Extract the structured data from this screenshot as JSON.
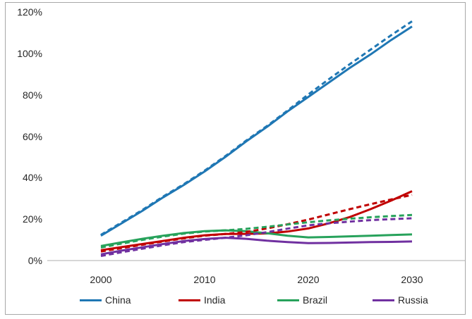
{
  "figure": {
    "background_color": "#ffffff",
    "border_color": "#a8a8a8"
  },
  "chart_data": {
    "type": "line",
    "title": "",
    "xlabel": "",
    "ylabel": "",
    "xlim": [
      2000,
      2030
    ],
    "ylim": [
      0,
      120
    ],
    "grid": false,
    "axis_line_color": "#bfbfbf",
    "x_ticks": [
      2000,
      2010,
      2020,
      2030
    ],
    "x_tick_labels": [
      "2000",
      "2010",
      "2020",
      "2030"
    ],
    "y_ticks": [
      0,
      20,
      40,
      60,
      80,
      100,
      120
    ],
    "y_tick_labels": [
      "0%",
      "20%",
      "40%",
      "60%",
      "80%",
      "100%",
      "120%"
    ],
    "x": [
      2000,
      2002,
      2004,
      2006,
      2008,
      2010,
      2012,
      2014,
      2016,
      2018,
      2020,
      2022,
      2024,
      2026,
      2028,
      2030
    ],
    "series": [
      {
        "name": "China",
        "style": "solid",
        "color": "#1f77b4",
        "values": [
          12,
          18,
          24,
          30.5,
          36.5,
          43,
          50,
          57.5,
          64.5,
          72,
          79,
          86,
          93,
          99.5,
          106.5,
          113
        ]
      },
      {
        "name": "India",
        "style": "solid",
        "color": "#c00000",
        "values": [
          5,
          6.5,
          8,
          9.5,
          11,
          12.2,
          12.8,
          12.9,
          13.1,
          14,
          15.5,
          18,
          21,
          24.8,
          29,
          33.5
        ]
      },
      {
        "name": "Brazil",
        "style": "solid",
        "color": "#27a25b",
        "values": [
          7,
          8.8,
          10.5,
          12,
          13.3,
          14.2,
          14.6,
          14.2,
          13.2,
          12,
          11.2,
          11.4,
          11.7,
          12,
          12.3,
          12.6
        ]
      },
      {
        "name": "Russia",
        "style": "solid",
        "color": "#7030a0",
        "values": [
          3,
          4.8,
          6.4,
          8,
          9.4,
          10.4,
          11,
          10.5,
          9.6,
          8.9,
          8.4,
          8.5,
          8.7,
          8.9,
          9,
          9.2
        ]
      },
      {
        "name": "China (dashed)",
        "style": "dashed",
        "color": "#1f77b4",
        "values": [
          12.4,
          18.4,
          24.4,
          30.9,
          36.9,
          43.4,
          50.4,
          57.9,
          64.9,
          72.4,
          80.2,
          87.6,
          94.8,
          101.8,
          108.8,
          115.5
        ]
      },
      {
        "name": "India (dashed)",
        "style": "dashed",
        "color": "#c00000",
        "values": [
          4.4,
          6,
          7.6,
          9.2,
          10.7,
          12,
          12.8,
          13.8,
          15.5,
          17.5,
          19.8,
          22.3,
          24.8,
          27.2,
          29.5,
          31.7
        ]
      },
      {
        "name": "Brazil (dashed)",
        "style": "dashed",
        "color": "#27a25b",
        "values": [
          6.3,
          8.2,
          10,
          11.6,
          13,
          14,
          14.6,
          15.3,
          16.3,
          17.4,
          18.5,
          19.4,
          20.2,
          20.9,
          21.5,
          22
        ]
      },
      {
        "name": "Russia (dashed)",
        "style": "dashed",
        "color": "#7030a0",
        "values": [
          2.2,
          4,
          5.7,
          7.4,
          8.9,
          10,
          11,
          12.2,
          13.7,
          15.4,
          17,
          18,
          18.8,
          19.5,
          20,
          20.4
        ]
      }
    ],
    "legend": {
      "position": "bottom",
      "entries": [
        {
          "label": "China",
          "color": "#1f77b4"
        },
        {
          "label": "India",
          "color": "#c00000"
        },
        {
          "label": "Brazil",
          "color": "#27a25b"
        },
        {
          "label": "Russia",
          "color": "#7030a0"
        }
      ]
    }
  }
}
